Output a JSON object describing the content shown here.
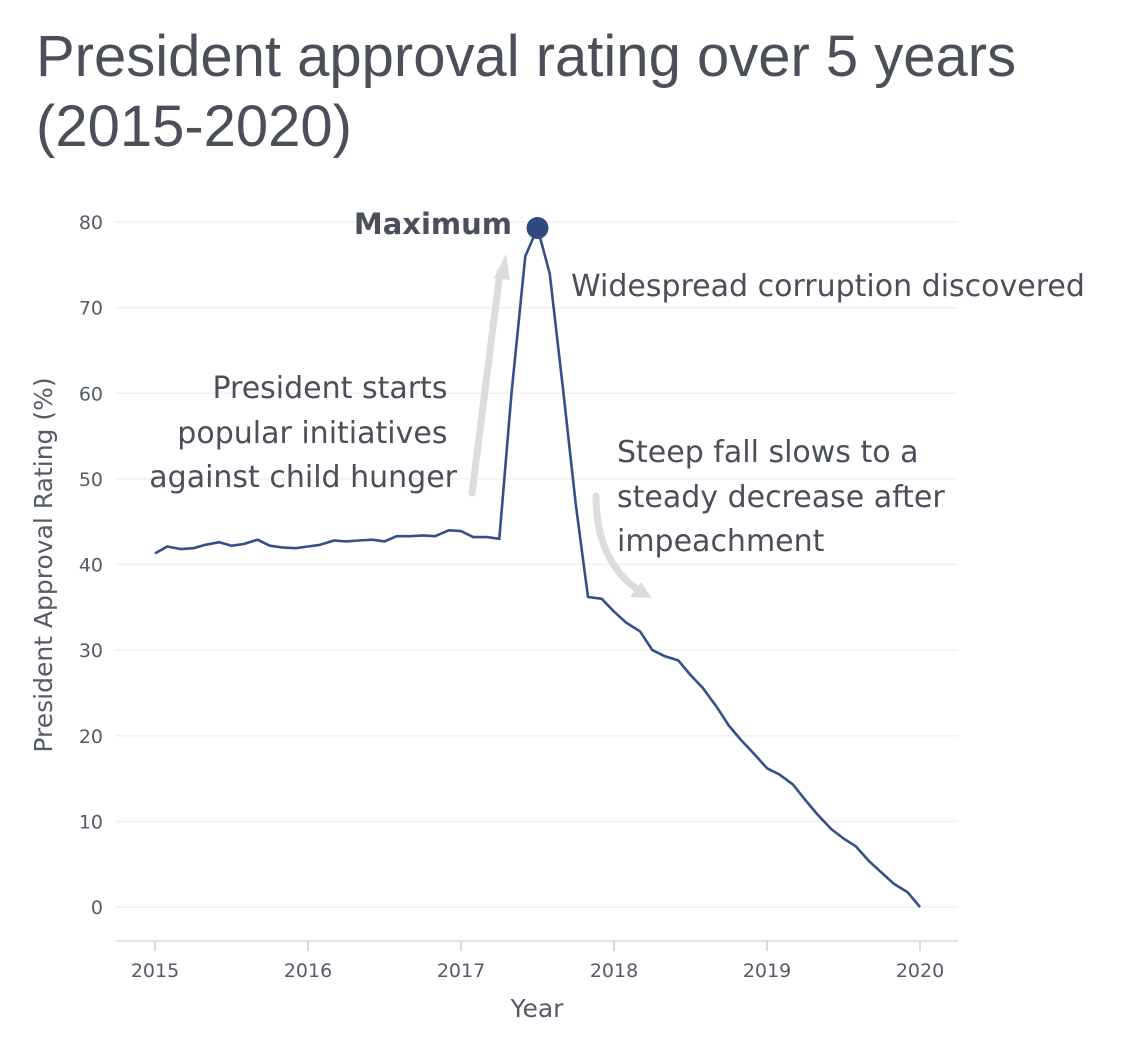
{
  "chart_data": {
    "type": "line",
    "title": "President approval rating over 5 years (2015-2020)",
    "xlabel": "Year",
    "ylabel": "President Approval Rating (%)",
    "xlim": [
      2015,
      2020
    ],
    "ylim": [
      0,
      80
    ],
    "x_ticks": [
      "2015",
      "2016",
      "2017",
      "2018",
      "2019",
      "2020"
    ],
    "y_ticks": [
      "0",
      "10",
      "20",
      "30",
      "40",
      "50",
      "60",
      "70",
      "80"
    ],
    "grid": true,
    "legend": "none",
    "colors": {
      "line": "#34508a",
      "marker": "#2f4a80",
      "arrow": "#d9d9d9",
      "grid": "#f0f0f0",
      "text": "#4a4f59"
    },
    "series": [
      {
        "x": [
          2015.0,
          2015.08,
          2015.17,
          2015.25,
          2015.33,
          2015.42,
          2015.5,
          2015.58,
          2015.67,
          2015.75,
          2015.83,
          2015.92,
          2016.0,
          2016.08,
          2016.17,
          2016.25,
          2016.33,
          2016.42,
          2016.5,
          2016.58,
          2016.67,
          2016.75,
          2016.83,
          2016.92,
          2017.0,
          2017.08,
          2017.17,
          2017.25,
          2017.33,
          2017.42,
          2017.5,
          2017.58,
          2017.67,
          2017.75,
          2017.83,
          2017.92,
          2018.0,
          2018.08,
          2018.17,
          2018.25,
          2018.33,
          2018.42,
          2018.5,
          2018.58,
          2018.67,
          2018.75,
          2018.83,
          2018.92,
          2019.0,
          2019.08,
          2019.17,
          2019.25,
          2019.33,
          2019.42,
          2019.5,
          2019.58,
          2019.67,
          2019.75,
          2019.83,
          2019.92,
          2020.0
        ],
        "y": [
          41.3,
          42.1,
          41.8,
          41.9,
          42.3,
          42.6,
          42.2,
          42.4,
          42.9,
          42.2,
          42.0,
          41.9,
          42.1,
          42.3,
          42.8,
          42.7,
          42.8,
          42.9,
          42.7,
          43.3,
          43.3,
          43.4,
          43.3,
          44.0,
          43.9,
          43.2,
          43.2,
          43.0,
          60.0,
          76.0,
          79.3,
          74.0,
          60.0,
          47.0,
          36.2,
          36.0,
          34.5,
          33.2,
          32.2,
          30.0,
          29.3,
          28.8,
          27.1,
          25.6,
          23.4,
          21.2,
          19.5,
          17.8,
          16.2,
          15.5,
          14.3,
          12.5,
          10.8,
          9.1,
          8.0,
          7.1,
          5.3,
          4.0,
          2.7,
          1.7,
          0.0
        ]
      }
    ],
    "annotations": {
      "maximum": "Maximum",
      "initiatives": [
        "President starts",
        "popular initiatives",
        "against child hunger"
      ],
      "corruption": "Widespread corruption discovered",
      "impeachment": [
        "Steep fall slows to a",
        "steady decrease after",
        "impeachment"
      ]
    }
  }
}
